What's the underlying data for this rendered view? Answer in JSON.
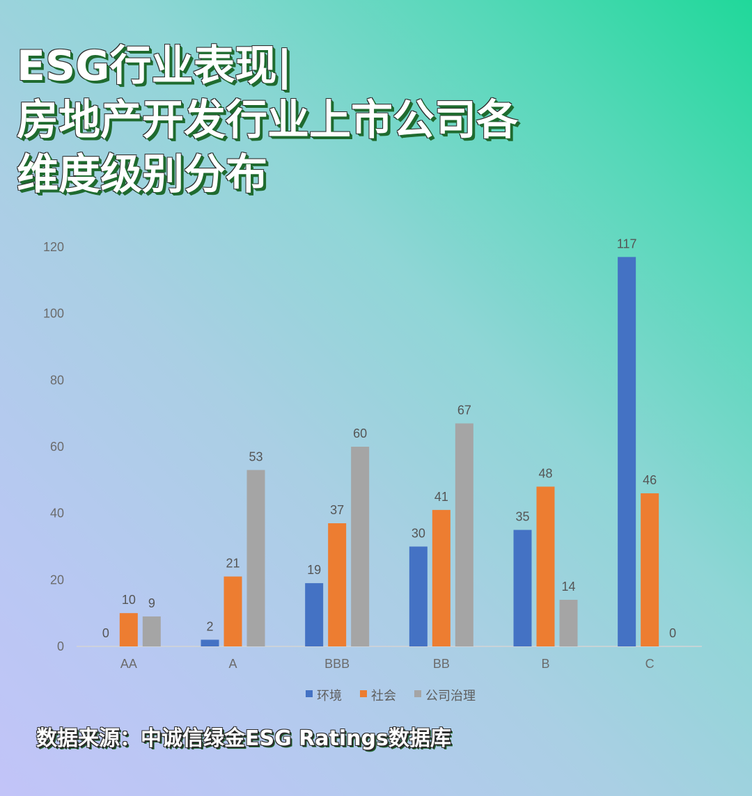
{
  "title": {
    "lines": [
      "ESG行业表现|",
      "房地产开发行业上市公司各",
      "维度级别分布"
    ]
  },
  "source": "数据来源：中诚信绿金ESG Ratings数据库",
  "chart_data": {
    "type": "bar",
    "categories": [
      "AA",
      "A",
      "BBB",
      "BB",
      "B",
      "C"
    ],
    "series": [
      {
        "name": "环境",
        "color": "#4472c4",
        "values": [
          0,
          2,
          19,
          30,
          35,
          117
        ]
      },
      {
        "name": "社会",
        "color": "#ed7d31",
        "values": [
          10,
          21,
          37,
          41,
          48,
          46
        ]
      },
      {
        "name": "公司治理",
        "color": "#a5a5a5",
        "values": [
          9,
          53,
          60,
          67,
          14,
          0
        ]
      }
    ],
    "yticks": [
      0,
      20,
      40,
      60,
      80,
      100,
      120
    ],
    "ylim": [
      0,
      120
    ],
    "legend": "bottom",
    "grid": false,
    "data_labels": true
  }
}
